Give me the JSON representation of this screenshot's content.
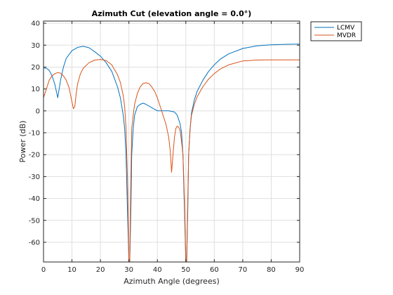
{
  "chart_data": {
    "type": "line",
    "title": "Azimuth Cut (elevation angle = 0.0°)",
    "xlabel": "Azimuth Angle (degrees)",
    "ylabel": "Power (dB)",
    "xlim": [
      0,
      90
    ],
    "ylim": [
      -69,
      41
    ],
    "xticks": [
      0,
      10,
      20,
      30,
      40,
      50,
      60,
      70,
      80,
      90
    ],
    "yticks": [
      40,
      30,
      20,
      10,
      0,
      -10,
      -20,
      -30,
      -40,
      -50,
      -60
    ],
    "grid": true,
    "legend_position": "outside top-right",
    "series": [
      {
        "name": "LCMV",
        "color": "#0072BD",
        "x": [
          0,
          1,
          2,
          3,
          4,
          5,
          6,
          7,
          8,
          10,
          12,
          14,
          16,
          18,
          20,
          22,
          24,
          26,
          27,
          28,
          28.5,
          29,
          29.5,
          30,
          30.3,
          30.7,
          31,
          31.5,
          32,
          33,
          34,
          35,
          36,
          38,
          40,
          42,
          44,
          46,
          47,
          48,
          48.5,
          49,
          49.5,
          50,
          50.3,
          50.7,
          51,
          51.5,
          52,
          53,
          54,
          56,
          58,
          60,
          62,
          65,
          70,
          75,
          80,
          85,
          90
        ],
        "y": [
          19.5,
          19.5,
          18.5,
          16,
          12,
          6,
          14,
          20,
          24,
          27.5,
          29,
          29.5,
          28.8,
          27,
          25,
          22,
          18,
          11,
          6,
          -2,
          -8,
          -20,
          -45,
          -69,
          -69,
          -45,
          -20,
          -8,
          -2,
          2,
          3,
          3.5,
          3,
          1.5,
          0,
          0,
          0,
          -0.5,
          -2,
          -6,
          -10,
          -20,
          -45,
          -69,
          -69,
          -45,
          -20,
          -8,
          -1,
          5,
          9,
          14,
          18,
          21,
          23.5,
          26,
          28.5,
          29.7,
          30.2,
          30.4,
          30.5
        ]
      },
      {
        "name": "MVDR",
        "color": "#D95319",
        "x": [
          0,
          1,
          2,
          3,
          4,
          5,
          6,
          7,
          8,
          9,
          10,
          10.5,
          11,
          11.5,
          12,
          13,
          14,
          16,
          18,
          20,
          22,
          24,
          26,
          27,
          28,
          28.5,
          29,
          29.5,
          30,
          30.3,
          30.7,
          31,
          31.5,
          32,
          33,
          34,
          35,
          36,
          37,
          38,
          39,
          40,
          41,
          42,
          43,
          44,
          44.5,
          45,
          45.5,
          46,
          46.5,
          47,
          47.5,
          48,
          48.5,
          49,
          49.5,
          50,
          50.3,
          50.7,
          51,
          51.5,
          52,
          53,
          54,
          56,
          58,
          60,
          62,
          65,
          70,
          75,
          80,
          85,
          90
        ],
        "y": [
          6,
          10,
          14,
          16,
          17,
          17.5,
          17.2,
          16,
          14,
          10.5,
          4,
          1,
          2,
          8,
          12.5,
          17,
          19.5,
          22,
          23.2,
          23.5,
          23,
          21,
          16.5,
          13,
          7,
          2,
          -8,
          -30,
          -69,
          -69,
          -30,
          -8,
          -2,
          3,
          8,
          11,
          12.5,
          12.8,
          12.5,
          11,
          9,
          6,
          2,
          -2,
          -6,
          -12,
          -18,
          -28,
          -20,
          -12,
          -8,
          -7,
          -7.5,
          -9,
          -14,
          -20,
          -40,
          -69,
          -69,
          -40,
          -20,
          -8,
          -2,
          3,
          6.5,
          11,
          14.5,
          17,
          19,
          21,
          22.8,
          23.2,
          23.3,
          23.3,
          23.3
        ]
      }
    ]
  }
}
